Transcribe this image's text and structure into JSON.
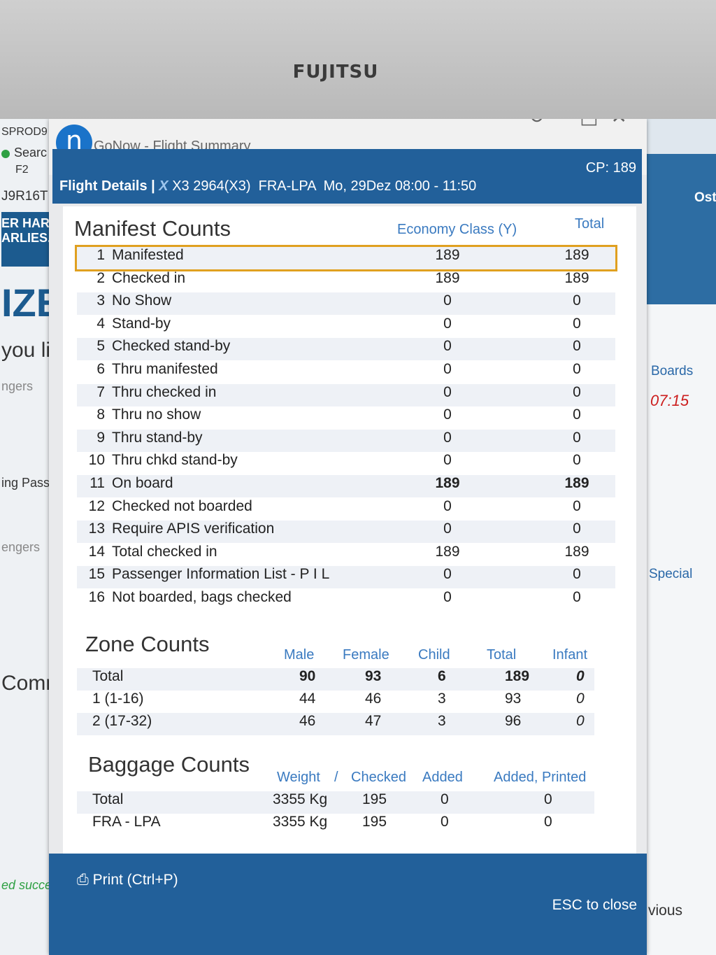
{
  "monitor": {
    "brand": "FUJITSU"
  },
  "background_left": {
    "lines": [
      "SPROD9",
      "Searc",
      "F2",
      "J9R16T",
      "ER HAR",
      "ARLIES...",
      "IZE",
      "you li",
      "ngers",
      "ing Pass",
      "engers",
      "Comm",
      "ed succe"
    ]
  },
  "background_right": {
    "lines": [
      "Ost",
      "Boards",
      "07:15",
      "Special",
      "vious"
    ],
    "time_color": "#cc1e1e"
  },
  "window": {
    "app_title": "GoNow - Flight Summary",
    "logo": "n",
    "controls": [
      "↻",
      "–",
      "□",
      "✕"
    ]
  },
  "header": {
    "label": "Flight Details |",
    "airline_icon": "X",
    "flight": "X3 2964(X3)",
    "route": "FRA-LPA",
    "date_time": "Mo, 29Dez 08:00 - 11:50",
    "cp": "CP: 189"
  },
  "manifest": {
    "title": "Manifest Counts",
    "col_class": "Economy Class (Y)",
    "col_total": "Total",
    "rows": [
      {
        "n": "1",
        "label": "Manifested",
        "y": "189",
        "t": "189"
      },
      {
        "n": "2",
        "label": "Checked in",
        "y": "189",
        "t": "189"
      },
      {
        "n": "3",
        "label": "No Show",
        "y": "0",
        "t": "0"
      },
      {
        "n": "4",
        "label": "Stand-by",
        "y": "0",
        "t": "0"
      },
      {
        "n": "5",
        "label": "Checked stand-by",
        "y": "0",
        "t": "0"
      },
      {
        "n": "6",
        "label": "Thru manifested",
        "y": "0",
        "t": "0"
      },
      {
        "n": "7",
        "label": "Thru checked in",
        "y": "0",
        "t": "0"
      },
      {
        "n": "8",
        "label": "Thru no show",
        "y": "0",
        "t": "0"
      },
      {
        "n": "9",
        "label": "Thru stand-by",
        "y": "0",
        "t": "0"
      },
      {
        "n": "10",
        "label": "Thru chkd stand-by",
        "y": "0",
        "t": "0"
      },
      {
        "n": "11",
        "label": "On board",
        "y": "189",
        "t": "189"
      },
      {
        "n": "12",
        "label": "Checked not boarded",
        "y": "0",
        "t": "0"
      },
      {
        "n": "13",
        "label": "Require APIS verification",
        "y": "0",
        "t": "0"
      },
      {
        "n": "14",
        "label": "Total checked in",
        "y": "189",
        "t": "189"
      },
      {
        "n": "15",
        "label": "Passenger Information List - P I L",
        "y": "0",
        "t": "0"
      },
      {
        "n": "16",
        "label": "Not boarded, bags checked",
        "y": "0",
        "t": "0"
      }
    ]
  },
  "zone": {
    "title": "Zone Counts",
    "cols": [
      "Male",
      "Female",
      "Child",
      "Total",
      "Infant"
    ],
    "rows": [
      {
        "label": "Total",
        "male": "90",
        "female": "93",
        "child": "6",
        "total": "189",
        "infant": "0"
      },
      {
        "label": "1 (1-16)",
        "male": "44",
        "female": "46",
        "child": "3",
        "total": "93",
        "infant": "0"
      },
      {
        "label": "2 (17-32)",
        "male": "46",
        "female": "47",
        "child": "3",
        "total": "96",
        "infant": "0"
      }
    ]
  },
  "baggage": {
    "title": "Baggage Counts",
    "cols": [
      "Weight",
      "/",
      "Checked",
      "Added",
      "Added, Printed"
    ],
    "rows": [
      {
        "label": "Total",
        "weight": "3355 Kg",
        "checked": "195",
        "added": "0",
        "printed": "0"
      },
      {
        "label": "FRA - LPA",
        "weight": "3355 Kg",
        "checked": "195",
        "added": "0",
        "printed": "0"
      }
    ]
  },
  "footer": {
    "print": "Print (Ctrl+P)",
    "esc": "ESC to close"
  }
}
